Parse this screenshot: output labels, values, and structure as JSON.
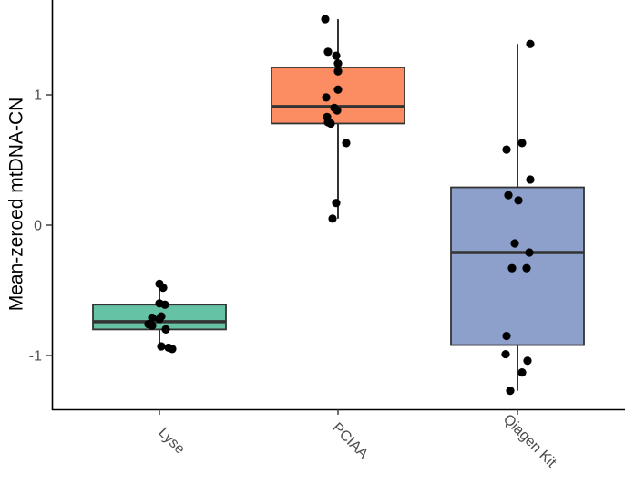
{
  "chart_data": {
    "type": "boxplot",
    "title": "",
    "xlabel": "",
    "ylabel": "Mean-zeroed mtDNA-CN",
    "ylim": [
      -1.42,
      1.74
    ],
    "yticks": [
      -1,
      0,
      1
    ],
    "ytick_labels": [
      "-1",
      "0",
      "1"
    ],
    "categories": [
      "Lyse",
      "PCIAA",
      "Qiagen Kit"
    ],
    "boxes": [
      {
        "category": "Lyse",
        "color": "#66c2a5",
        "whisker_low": -0.93,
        "q1": -0.8,
        "median": -0.74,
        "q3": -0.61,
        "whisker_high": -0.45,
        "points": [
          -0.45,
          -0.48,
          -0.6,
          -0.61,
          -0.7,
          -0.71,
          -0.72,
          -0.76,
          -0.77,
          -0.8,
          -0.93,
          -0.94,
          -0.95
        ]
      },
      {
        "category": "PCIAA",
        "color": "#fc8d62",
        "whisker_low": 0.05,
        "q1": 0.78,
        "median": 0.91,
        "q3": 1.21,
        "whisker_high": 1.58,
        "points": [
          1.58,
          1.33,
          1.3,
          1.24,
          1.18,
          1.04,
          0.98,
          0.9,
          0.88,
          0.83,
          0.79,
          0.78,
          0.63,
          0.17,
          0.05
        ]
      },
      {
        "category": "Qiagen Kit",
        "color": "#8da0cb",
        "whisker_low": -1.27,
        "q1": -0.92,
        "median": -0.21,
        "q3": 0.29,
        "whisker_high": 1.39,
        "points": [
          1.39,
          0.63,
          0.58,
          0.35,
          0.23,
          0.19,
          -0.14,
          -0.21,
          -0.33,
          -0.33,
          -0.85,
          -0.99,
          -1.04,
          -1.13,
          -1.27
        ]
      }
    ],
    "grid": false,
    "legend": "none"
  }
}
